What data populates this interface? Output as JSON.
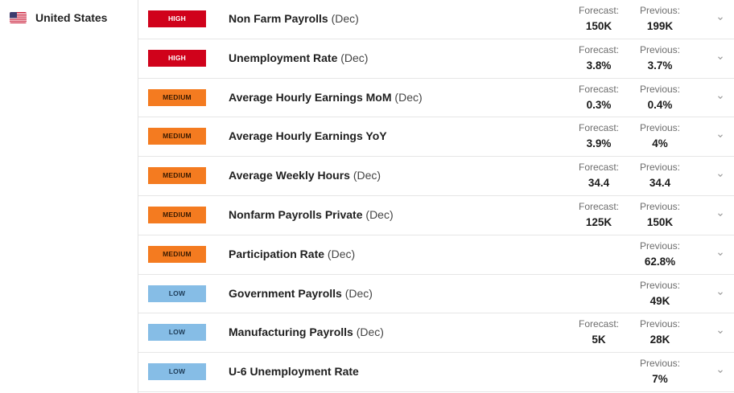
{
  "country": {
    "name": "United States",
    "flag_icon": "us-flag-icon"
  },
  "events": [
    {
      "impact": "high",
      "impact_label": "HIGH",
      "title": "Non Farm Payrolls",
      "period": "(Dec)",
      "forecast_label": "Forecast:",
      "forecast": "150K",
      "previous_label": "Previous:",
      "previous": "199K"
    },
    {
      "impact": "high",
      "impact_label": "HIGH",
      "title": "Unemployment Rate",
      "period": "(Dec)",
      "forecast_label": "Forecast:",
      "forecast": "3.8%",
      "previous_label": "Previous:",
      "previous": "3.7%"
    },
    {
      "impact": "medium",
      "impact_label": "MEDIUM",
      "title": "Average Hourly Earnings MoM",
      "period": "(Dec)",
      "forecast_label": "Forecast:",
      "forecast": "0.3%",
      "previous_label": "Previous:",
      "previous": "0.4%"
    },
    {
      "impact": "medium",
      "impact_label": "MEDIUM",
      "title": "Average Hourly Earnings YoY",
      "period": "",
      "forecast_label": "Forecast:",
      "forecast": "3.9%",
      "previous_label": "Previous:",
      "previous": "4%"
    },
    {
      "impact": "medium",
      "impact_label": "MEDIUM",
      "title": "Average Weekly Hours",
      "period": "(Dec)",
      "forecast_label": "Forecast:",
      "forecast": "34.4",
      "previous_label": "Previous:",
      "previous": "34.4"
    },
    {
      "impact": "medium",
      "impact_label": "MEDIUM",
      "title": "Nonfarm Payrolls Private",
      "period": "(Dec)",
      "forecast_label": "Forecast:",
      "forecast": "125K",
      "previous_label": "Previous:",
      "previous": "150K"
    },
    {
      "impact": "medium",
      "impact_label": "MEDIUM",
      "title": "Participation Rate",
      "period": "(Dec)",
      "forecast_label": "",
      "forecast": "",
      "previous_label": "Previous:",
      "previous": "62.8%"
    },
    {
      "impact": "low",
      "impact_label": "LOW",
      "title": "Government Payrolls",
      "period": "(Dec)",
      "forecast_label": "",
      "forecast": "",
      "previous_label": "Previous:",
      "previous": "49K"
    },
    {
      "impact": "low",
      "impact_label": "LOW",
      "title": "Manufacturing Payrolls",
      "period": "(Dec)",
      "forecast_label": "Forecast:",
      "forecast": "5K",
      "previous_label": "Previous:",
      "previous": "28K"
    },
    {
      "impact": "low",
      "impact_label": "LOW",
      "title": "U-6 Unemployment Rate",
      "period": "",
      "forecast_label": "",
      "forecast": "",
      "previous_label": "Previous:",
      "previous": "7%"
    }
  ],
  "colors": {
    "high": "#d0021b",
    "medium": "#f47b20",
    "low": "#86bde6"
  },
  "row_icon": "chevron-down-icon"
}
